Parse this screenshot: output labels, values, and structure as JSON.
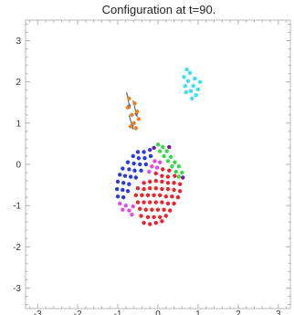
{
  "chart_data": {
    "type": "scatter",
    "title": "Configuration at  t=90.",
    "xlabel": "",
    "ylabel": "",
    "xlim": [
      -3.3,
      3.3
    ],
    "ylim": [
      -3.5,
      3.5
    ],
    "x_ticks": [
      -3,
      -2,
      -1,
      0,
      1,
      2,
      3
    ],
    "y_ticks": [
      -3,
      -2,
      -1,
      0,
      1,
      2,
      3
    ],
    "x_tick_labels": [
      "-3",
      "-2",
      "-1",
      "0",
      "1",
      "2",
      "3"
    ],
    "y_tick_labels": [
      "-3",
      "-2",
      "-1",
      "0",
      "1",
      "2",
      "3"
    ],
    "grid": false,
    "legend": "none",
    "colors": {
      "red": "#e8242e",
      "blue": "#2a3dd8",
      "green": "#36d84a",
      "magenta": "#e84ae0",
      "purple": "#7a1a8c",
      "cyan": "#3ae0ea",
      "orange": "#e8822a",
      "arrow": "#666666"
    },
    "series": [
      {
        "color": "cyan",
        "points": [
          [
            0.72,
            2.3
          ],
          [
            0.8,
            2.22
          ],
          [
            0.65,
            2.12
          ],
          [
            0.92,
            2.08
          ],
          [
            0.75,
            2.02
          ],
          [
            1.05,
            2.0
          ],
          [
            0.88,
            1.9
          ],
          [
            0.68,
            1.9
          ],
          [
            1.0,
            1.82
          ],
          [
            0.82,
            1.78
          ],
          [
            0.7,
            1.75
          ],
          [
            0.95,
            1.68
          ],
          [
            0.85,
            1.6
          ]
        ]
      },
      {
        "color": "orange",
        "points": [
          [
            -0.72,
            1.6
          ],
          [
            -0.58,
            1.48
          ],
          [
            -0.75,
            1.38
          ],
          [
            -0.52,
            1.28
          ],
          [
            -0.65,
            1.2
          ],
          [
            -0.48,
            1.1
          ],
          [
            -0.6,
            1.0
          ],
          [
            -0.68,
            0.92
          ],
          [
            -0.55,
            0.88
          ]
        ]
      },
      {
        "color": "blue",
        "points": [
          [
            -0.5,
            0.3
          ],
          [
            -0.35,
            0.3
          ],
          [
            -0.2,
            0.35
          ],
          [
            -0.62,
            0.2
          ],
          [
            -0.48,
            0.15
          ],
          [
            -0.33,
            0.15
          ],
          [
            -0.18,
            0.2
          ],
          [
            -0.75,
            0.05
          ],
          [
            -0.6,
            0.02
          ],
          [
            -0.45,
            0.0
          ],
          [
            -0.3,
            0.0
          ],
          [
            -0.88,
            -0.1
          ],
          [
            -0.72,
            -0.12
          ],
          [
            -0.58,
            -0.15
          ],
          [
            -0.42,
            -0.15
          ],
          [
            -0.95,
            -0.25
          ],
          [
            -0.82,
            -0.28
          ],
          [
            -0.68,
            -0.3
          ],
          [
            -0.55,
            -0.32
          ],
          [
            -1.0,
            -0.42
          ],
          [
            -0.86,
            -0.45
          ],
          [
            -0.72,
            -0.48
          ],
          [
            -1.02,
            -0.6
          ],
          [
            -0.88,
            -0.62
          ],
          [
            -0.75,
            -0.65
          ],
          [
            -1.0,
            -0.78
          ],
          [
            -0.86,
            -0.8
          ]
        ]
      },
      {
        "color": "green",
        "points": [
          [
            0.0,
            0.48
          ],
          [
            0.12,
            0.42
          ],
          [
            0.05,
            0.32
          ],
          [
            0.22,
            0.32
          ],
          [
            0.15,
            0.2
          ],
          [
            0.32,
            0.18
          ],
          [
            0.25,
            0.08
          ],
          [
            0.42,
            0.05
          ],
          [
            0.35,
            -0.05
          ],
          [
            0.52,
            -0.05
          ],
          [
            0.45,
            -0.18
          ],
          [
            0.6,
            -0.2
          ],
          [
            0.52,
            -0.3
          ]
        ]
      },
      {
        "color": "purple",
        "points": [
          [
            0.28,
            0.42
          ],
          [
            0.62,
            -0.32
          ],
          [
            -0.1,
            0.4
          ]
        ]
      },
      {
        "color": "magenta",
        "points": [
          [
            -0.08,
            0.08
          ],
          [
            0.05,
            0.05
          ],
          [
            -0.15,
            -0.05
          ],
          [
            -0.02,
            -0.08
          ],
          [
            -0.22,
            -0.18
          ],
          [
            -0.95,
            -0.95
          ],
          [
            -0.8,
            -1.0
          ],
          [
            -0.88,
            -1.1
          ],
          [
            -0.72,
            -1.12
          ],
          [
            -0.62,
            -1.02
          ],
          [
            -0.65,
            -1.22
          ]
        ]
      },
      {
        "color": "red",
        "points": [
          [
            0.12,
            -0.12
          ],
          [
            0.28,
            -0.15
          ],
          [
            0.42,
            -0.28
          ],
          [
            -0.05,
            -0.22
          ],
          [
            0.1,
            -0.28
          ],
          [
            0.25,
            -0.3
          ],
          [
            -0.35,
            -0.45
          ],
          [
            -0.2,
            -0.42
          ],
          [
            -0.05,
            -0.4
          ],
          [
            0.1,
            -0.42
          ],
          [
            0.25,
            -0.45
          ],
          [
            0.4,
            -0.45
          ],
          [
            0.55,
            -0.48
          ],
          [
            -0.5,
            -0.58
          ],
          [
            -0.35,
            -0.6
          ],
          [
            -0.2,
            -0.58
          ],
          [
            -0.05,
            -0.58
          ],
          [
            0.1,
            -0.6
          ],
          [
            0.25,
            -0.6
          ],
          [
            0.4,
            -0.62
          ],
          [
            0.55,
            -0.65
          ],
          [
            -0.55,
            -0.75
          ],
          [
            -0.4,
            -0.75
          ],
          [
            -0.25,
            -0.75
          ],
          [
            -0.1,
            -0.75
          ],
          [
            0.05,
            -0.75
          ],
          [
            0.2,
            -0.78
          ],
          [
            0.35,
            -0.78
          ],
          [
            0.5,
            -0.8
          ],
          [
            -0.5,
            -0.92
          ],
          [
            -0.35,
            -0.92
          ],
          [
            -0.2,
            -0.92
          ],
          [
            -0.05,
            -0.92
          ],
          [
            0.1,
            -0.92
          ],
          [
            0.25,
            -0.95
          ],
          [
            0.4,
            -0.95
          ],
          [
            -0.45,
            -1.08
          ],
          [
            -0.3,
            -1.1
          ],
          [
            -0.15,
            -1.1
          ],
          [
            0.0,
            -1.1
          ],
          [
            0.15,
            -1.1
          ],
          [
            0.3,
            -1.12
          ],
          [
            -0.42,
            -1.25
          ],
          [
            -0.25,
            -1.28
          ],
          [
            -0.1,
            -1.28
          ],
          [
            0.05,
            -1.28
          ],
          [
            0.2,
            -1.25
          ],
          [
            -0.35,
            -1.42
          ],
          [
            -0.2,
            -1.45
          ],
          [
            -0.05,
            -1.42
          ],
          [
            0.1,
            -1.38
          ]
        ]
      }
    ],
    "arrows": [
      {
        "from": [
          -0.78,
          1.75
        ],
        "to": [
          -0.7,
          1.35
        ]
      },
      {
        "from": [
          -0.62,
          1.55
        ],
        "to": [
          -0.52,
          1.15
        ]
      },
      {
        "from": [
          -0.72,
          1.2
        ],
        "to": [
          -0.62,
          0.85
        ]
      }
    ]
  }
}
